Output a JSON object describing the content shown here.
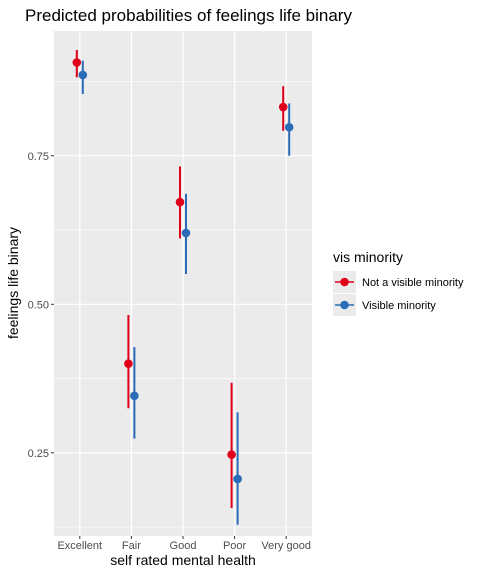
{
  "chart_data": {
    "type": "scatter",
    "title": "Predicted probabilities of feelings life binary",
    "xlabel": "self rated mental health",
    "ylabel": "feelings life binary",
    "categories": [
      "Excellent",
      "Fair",
      "Good",
      "Poor",
      "Very good"
    ],
    "y_ticks": [
      0.25,
      0.5,
      0.75
    ],
    "y_tick_labels": [
      "0.25",
      "0.50",
      "0.75"
    ],
    "ylim": [
      0.11,
      0.96
    ],
    "grid": true,
    "legend": {
      "title": "vis minority",
      "placement": "right"
    },
    "series": [
      {
        "name": "Not a visible minority",
        "color": "#e0001b",
        "values": [
          0.907,
          0.4,
          0.672,
          0.247,
          0.832
        ],
        "lower": [
          0.882,
          0.325,
          0.611,
          0.157,
          0.792
        ],
        "upper": [
          0.928,
          0.482,
          0.732,
          0.368,
          0.867
        ]
      },
      {
        "name": "Visible minority",
        "color": "#2b6cb8",
        "values": [
          0.886,
          0.346,
          0.62,
          0.206,
          0.798
        ],
        "lower": [
          0.854,
          0.274,
          0.551,
          0.129,
          0.75
        ],
        "upper": [
          0.91,
          0.428,
          0.686,
          0.318,
          0.838
        ]
      }
    ]
  }
}
